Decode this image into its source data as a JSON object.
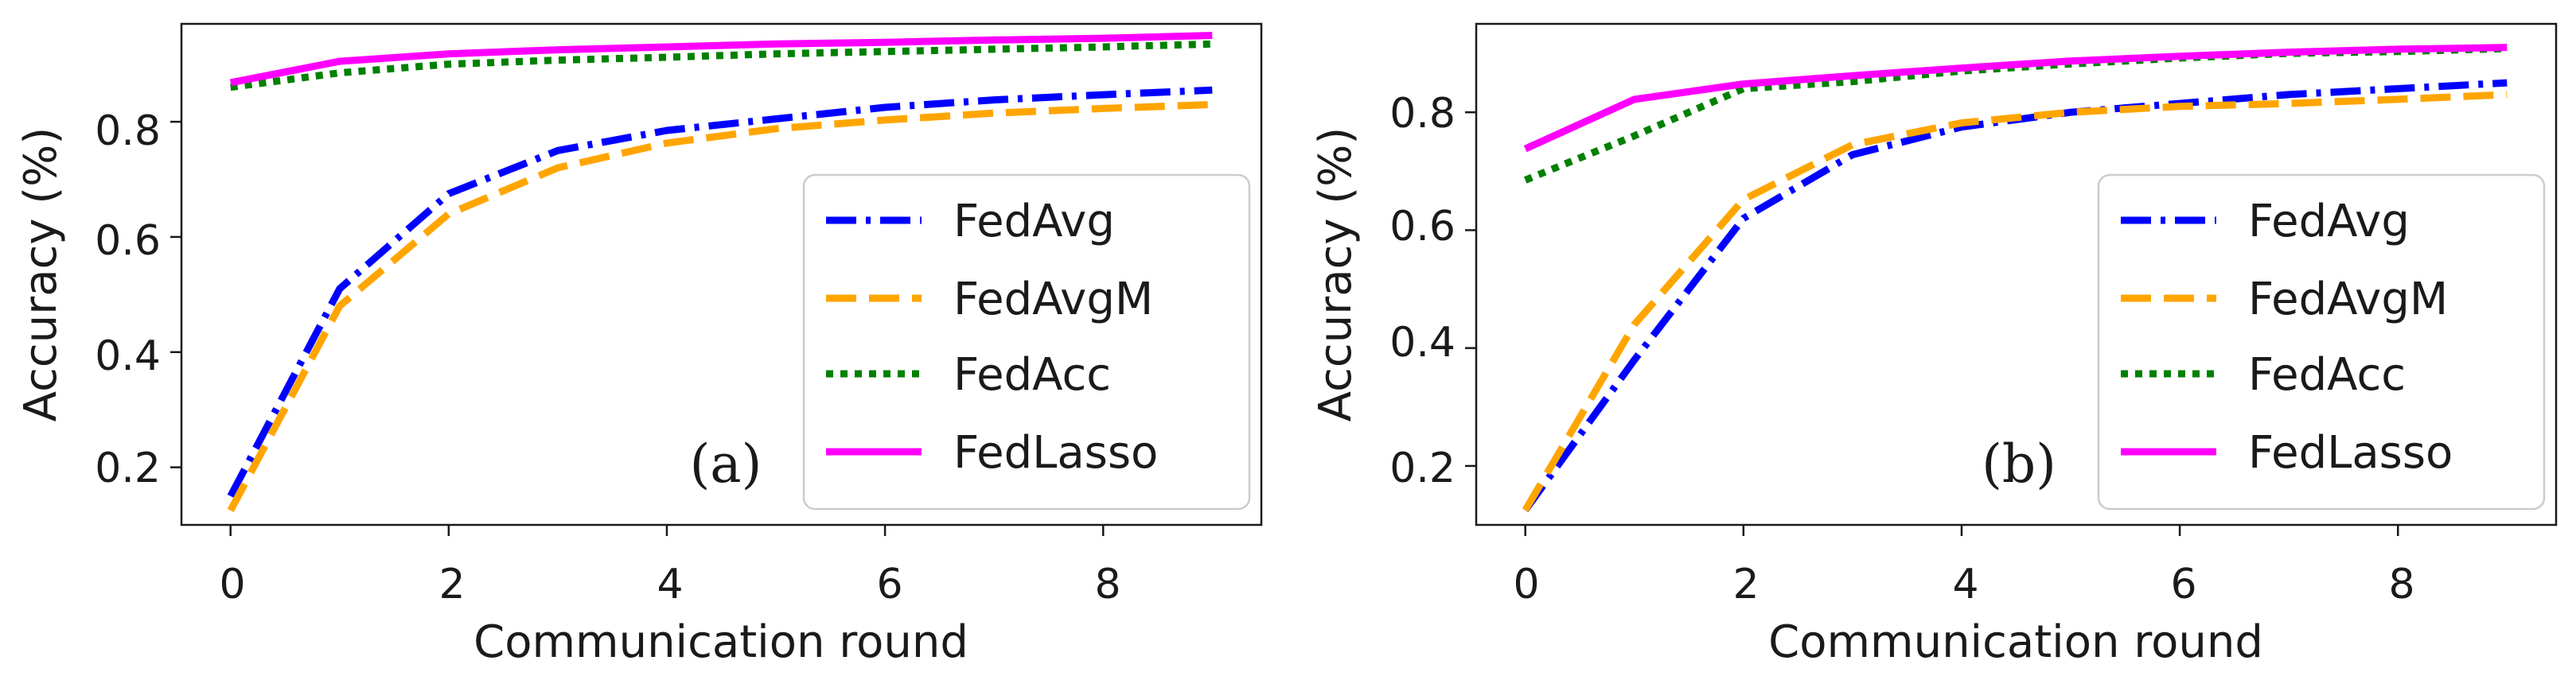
{
  "figure": {
    "background": "#ffffff"
  },
  "chart_data": [
    {
      "type": "line",
      "panel_label": "(a)",
      "xlabel": "Communication round",
      "ylabel": "Accuracy (%)",
      "xlim": [
        -0.45,
        9.45
      ],
      "ylim": [
        0.1,
        0.97
      ],
      "xticks": [
        0,
        2,
        4,
        6,
        8
      ],
      "xtick_labels": [
        "0",
        "2",
        "4",
        "6",
        "8"
      ],
      "yticks": [
        0.2,
        0.4,
        0.6,
        0.8
      ],
      "ytick_labels": [
        "0.2",
        "0.4",
        "0.6",
        "0.8"
      ],
      "legend_position": "lower-right",
      "x": [
        0,
        1,
        2,
        3,
        4,
        5,
        6,
        7,
        8,
        9
      ],
      "series": [
        {
          "name": "FedAvg",
          "color": "#0000ff",
          "style": "dashdot",
          "values": [
            0.15,
            0.51,
            0.675,
            0.75,
            0.785,
            0.805,
            0.825,
            0.838,
            0.847,
            0.855
          ]
        },
        {
          "name": "FedAvgM",
          "color": "#ffa500",
          "style": "dashed",
          "values": [
            0.125,
            0.48,
            0.64,
            0.72,
            0.763,
            0.788,
            0.803,
            0.815,
            0.823,
            0.83
          ]
        },
        {
          "name": "FedAcc",
          "color": "#008000",
          "style": "dotted",
          "values": [
            0.86,
            0.885,
            0.9,
            0.907,
            0.912,
            0.918,
            0.922,
            0.926,
            0.93,
            0.935
          ]
        },
        {
          "name": "FedLasso",
          "color": "#ff00ff",
          "style": "solid",
          "values": [
            0.868,
            0.905,
            0.918,
            0.925,
            0.93,
            0.935,
            0.938,
            0.942,
            0.945,
            0.95
          ]
        }
      ]
    },
    {
      "type": "line",
      "panel_label": "(b)",
      "xlabel": "Communication round",
      "ylabel": "Accuracy (%)",
      "xlim": [
        -0.45,
        9.45
      ],
      "ylim": [
        0.1,
        0.95
      ],
      "xticks": [
        0,
        2,
        4,
        6,
        8
      ],
      "xtick_labels": [
        "0",
        "2",
        "4",
        "6",
        "8"
      ],
      "yticks": [
        0.2,
        0.4,
        0.6,
        0.8
      ],
      "ytick_labels": [
        "0.2",
        "0.4",
        "0.6",
        "0.8"
      ],
      "legend_position": "lower-right",
      "x": [
        0,
        1,
        2,
        3,
        4,
        5,
        6,
        7,
        8,
        9
      ],
      "series": [
        {
          "name": "FedAvg",
          "color": "#0000ff",
          "style": "dashdot",
          "values": [
            0.125,
            0.38,
            0.62,
            0.728,
            0.775,
            0.8,
            0.815,
            0.83,
            0.84,
            0.85
          ]
        },
        {
          "name": "FedAvgM",
          "color": "#ffa500",
          "style": "dashed",
          "values": [
            0.125,
            0.44,
            0.652,
            0.745,
            0.782,
            0.8,
            0.81,
            0.815,
            0.822,
            0.83
          ]
        },
        {
          "name": "FedAcc",
          "color": "#008000",
          "style": "dotted",
          "values": [
            0.685,
            0.76,
            0.84,
            0.852,
            0.87,
            0.882,
            0.892,
            0.9,
            0.903,
            0.908
          ]
        },
        {
          "name": "FedLasso",
          "color": "#ff00ff",
          "style": "solid",
          "values": [
            0.738,
            0.822,
            0.848,
            0.862,
            0.875,
            0.887,
            0.895,
            0.902,
            0.907,
            0.91
          ]
        }
      ]
    }
  ]
}
